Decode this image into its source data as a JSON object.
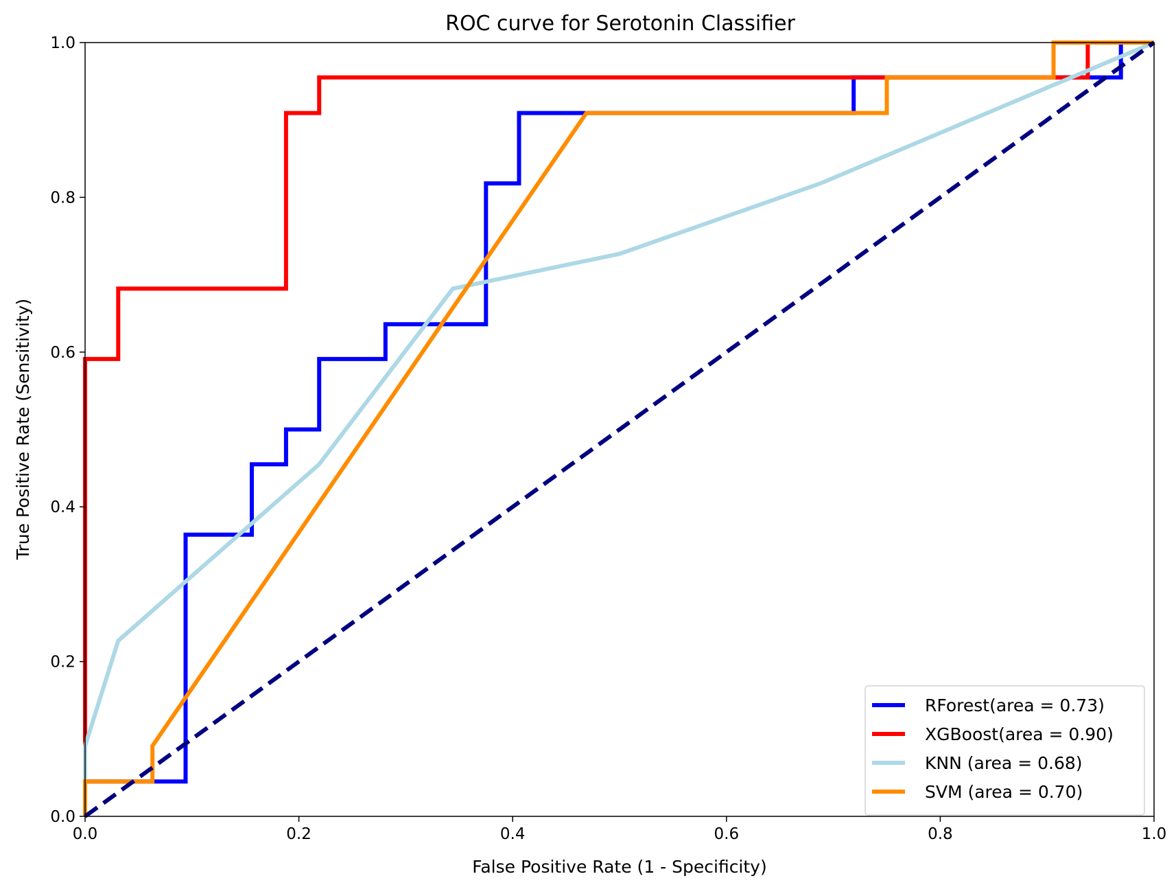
{
  "chart_data": {
    "type": "line",
    "title": "ROC curve for Serotonin Classifier",
    "xlabel": "False Positive Rate (1 - Specificity)",
    "ylabel": "True Positive Rate (Sensitivity)",
    "xlim": [
      0.0,
      1.0
    ],
    "ylim": [
      0.0,
      1.0
    ],
    "xticks": [
      "0.0",
      "0.2",
      "0.4",
      "0.6",
      "0.8",
      "1.0"
    ],
    "yticks": [
      "0.0",
      "0.2",
      "0.4",
      "0.6",
      "0.8",
      "1.0"
    ],
    "grid": false,
    "legend_position": "lower-right",
    "series": [
      {
        "name": "RForest(area = 0.73)",
        "color": "#0000ff",
        "style": "solid",
        "x": [
          0,
          0,
          0.094,
          0.094,
          0.156,
          0.156,
          0.188,
          0.188,
          0.219,
          0.219,
          0.281,
          0.281,
          0.375,
          0.375,
          0.406,
          0.406,
          0.719,
          0.719,
          0.969,
          0.969,
          1.0
        ],
        "y": [
          0,
          0.045,
          0.045,
          0.364,
          0.364,
          0.455,
          0.455,
          0.5,
          0.5,
          0.591,
          0.591,
          0.636,
          0.636,
          0.818,
          0.818,
          0.909,
          0.909,
          0.955,
          0.955,
          1.0,
          1.0
        ]
      },
      {
        "name": "XGBoost(area = 0.90)",
        "color": "#ff0000",
        "style": "solid",
        "x": [
          0,
          0,
          0.031,
          0.031,
          0.188,
          0.188,
          0.219,
          0.219,
          0.938,
          0.938,
          1.0
        ],
        "y": [
          0,
          0.591,
          0.591,
          0.682,
          0.682,
          0.909,
          0.909,
          0.955,
          0.955,
          1.0,
          1.0
        ]
      },
      {
        "name": "KNN (area = 0.68)",
        "color": "#add8e6",
        "style": "solid",
        "x": [
          0,
          0,
          0.031,
          0.219,
          0.344,
          0.5,
          0.688,
          1.0
        ],
        "y": [
          0,
          0.091,
          0.227,
          0.455,
          0.682,
          0.727,
          0.818,
          1.0
        ]
      },
      {
        "name": "SVM (area = 0.70)",
        "color": "#ff8c00",
        "style": "solid",
        "x": [
          0,
          0,
          0.063,
          0.063,
          0.469,
          0.75,
          0.75,
          0.906,
          0.906,
          1.0
        ],
        "y": [
          0,
          0.045,
          0.045,
          0.091,
          0.909,
          0.909,
          0.955,
          0.955,
          1.0,
          1.0
        ]
      },
      {
        "color": "#000080",
        "style": "dashed",
        "x": [
          0,
          1
        ],
        "y": [
          0,
          1
        ]
      }
    ]
  }
}
